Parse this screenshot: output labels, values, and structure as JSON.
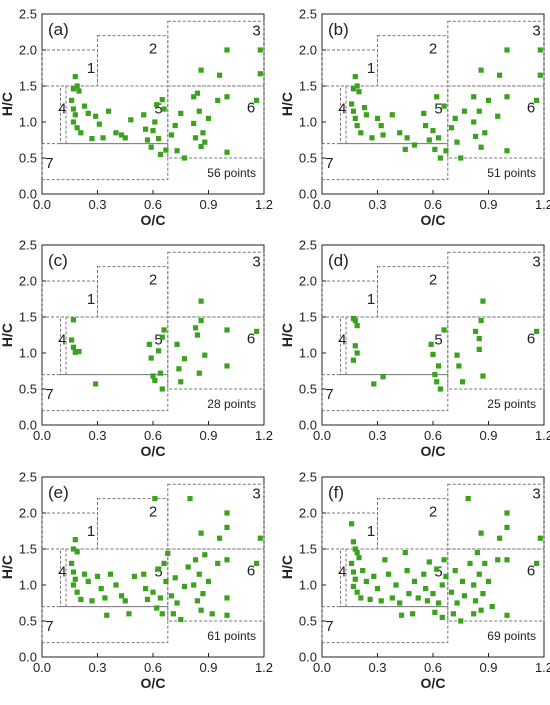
{
  "chart_data": [
    {
      "type": "scatter",
      "panel_label": "(a)",
      "count_label": "56 points",
      "xlabel": "O/C",
      "ylabel": "H/C",
      "xlim": [
        0,
        1.2
      ],
      "ylim": [
        0,
        2.5
      ],
      "x_ticks": [
        "0.0",
        "0.3",
        "0.6",
        "0.9",
        "1.2"
      ],
      "y_ticks": [
        "0.0",
        "0.5",
        "1.0",
        "1.5",
        "2.0",
        "2.5"
      ],
      "region_labels": [
        "1",
        "2",
        "3",
        "4",
        "5",
        "6",
        "7"
      ],
      "points": [
        [
          0.17,
          1.46
        ],
        [
          0.18,
          1.63
        ],
        [
          0.19,
          1.5
        ],
        [
          0.2,
          1.43
        ],
        [
          0.16,
          1.3
        ],
        [
          0.17,
          1.18
        ],
        [
          0.18,
          1.1
        ],
        [
          0.17,
          1.0
        ],
        [
          0.19,
          0.92
        ],
        [
          0.21,
          0.85
        ],
        [
          0.23,
          1.22
        ],
        [
          0.25,
          1.12
        ],
        [
          0.27,
          0.77
        ],
        [
          0.29,
          1.08
        ],
        [
          0.31,
          0.97
        ],
        [
          0.33,
          0.78
        ],
        [
          0.36,
          1.15
        ],
        [
          0.4,
          0.85
        ],
        [
          0.43,
          0.82
        ],
        [
          0.45,
          0.78
        ],
        [
          0.48,
          1.03
        ],
        [
          0.55,
          1.1
        ],
        [
          0.56,
          0.9
        ],
        [
          0.57,
          0.75
        ],
        [
          0.6,
          0.88
        ],
        [
          0.59,
          0.65
        ],
        [
          0.61,
          1.0
        ],
        [
          0.62,
          1.24
        ],
        [
          0.63,
          0.77
        ],
        [
          0.64,
          0.55
        ],
        [
          0.66,
          1.18
        ],
        [
          0.65,
          1.31
        ],
        [
          0.67,
          0.61
        ],
        [
          0.7,
          0.82
        ],
        [
          0.72,
          0.95
        ],
        [
          0.73,
          0.6
        ],
        [
          0.75,
          1.12
        ],
        [
          0.77,
          0.5
        ],
        [
          0.82,
          0.98
        ],
        [
          0.82,
          1.35
        ],
        [
          0.83,
          0.78
        ],
        [
          0.84,
          1.4
        ],
        [
          0.85,
          1.15
        ],
        [
          0.86,
          0.66
        ],
        [
          0.86,
          1.72
        ],
        [
          0.87,
          0.85
        ],
        [
          0.88,
          0.72
        ],
        [
          0.9,
          1.05
        ],
        [
          0.95,
          1.3
        ],
        [
          0.96,
          1.65
        ],
        [
          1.0,
          2.0
        ],
        [
          1.0,
          1.35
        ],
        [
          1.0,
          0.58
        ],
        [
          1.18,
          2.0
        ],
        [
          1.18,
          1.67
        ],
        [
          1.16,
          1.3
        ]
      ]
    },
    {
      "type": "scatter",
      "panel_label": "(b)",
      "count_label": "51 points",
      "xlabel": "O/C",
      "ylabel": "H/C",
      "xlim": [
        0,
        1.2
      ],
      "ylim": [
        0,
        2.5
      ],
      "x_ticks": [
        "0.0",
        "0.3",
        "0.6",
        "0.9",
        "1.2"
      ],
      "y_ticks": [
        "0.0",
        "0.5",
        "1.0",
        "1.5",
        "2.0",
        "2.5"
      ],
      "region_labels": [
        "1",
        "2",
        "3",
        "4",
        "5",
        "6",
        "7"
      ],
      "points": [
        [
          0.17,
          1.46
        ],
        [
          0.18,
          1.63
        ],
        [
          0.19,
          1.5
        ],
        [
          0.2,
          1.42
        ],
        [
          0.16,
          1.25
        ],
        [
          0.17,
          1.15
        ],
        [
          0.18,
          1.05
        ],
        [
          0.19,
          0.95
        ],
        [
          0.21,
          0.85
        ],
        [
          0.23,
          1.2
        ],
        [
          0.24,
          1.1
        ],
        [
          0.27,
          0.78
        ],
        [
          0.3,
          1.05
        ],
        [
          0.32,
          0.95
        ],
        [
          0.33,
          0.82
        ],
        [
          0.38,
          1.1
        ],
        [
          0.42,
          0.85
        ],
        [
          0.45,
          0.62
        ],
        [
          0.46,
          0.78
        ],
        [
          0.5,
          0.68
        ],
        [
          0.55,
          1.12
        ],
        [
          0.56,
          0.95
        ],
        [
          0.58,
          0.75
        ],
        [
          0.6,
          0.88
        ],
        [
          0.61,
          0.62
        ],
        [
          0.62,
          1.35
        ],
        [
          0.63,
          0.78
        ],
        [
          0.64,
          0.5
        ],
        [
          0.66,
          1.22
        ],
        [
          0.67,
          0.6
        ],
        [
          0.7,
          0.92
        ],
        [
          0.72,
          1.05
        ],
        [
          0.73,
          0.72
        ],
        [
          0.75,
          0.5
        ],
        [
          0.77,
          1.15
        ],
        [
          0.82,
          1.0
        ],
        [
          0.82,
          1.35
        ],
        [
          0.83,
          0.8
        ],
        [
          0.85,
          1.15
        ],
        [
          0.86,
          0.65
        ],
        [
          0.86,
          1.72
        ],
        [
          0.88,
          0.85
        ],
        [
          0.9,
          1.3
        ],
        [
          0.95,
          1.08
        ],
        [
          0.96,
          1.65
        ],
        [
          1.0,
          2.0
        ],
        [
          1.0,
          1.35
        ],
        [
          1.0,
          0.6
        ],
        [
          1.18,
          2.0
        ],
        [
          1.18,
          1.65
        ],
        [
          1.16,
          1.3
        ]
      ]
    },
    {
      "type": "scatter",
      "panel_label": "(c)",
      "count_label": "28 points",
      "xlabel": "O/C",
      "ylabel": "H/C",
      "xlim": [
        0,
        1.2
      ],
      "ylim": [
        0,
        2.5
      ],
      "x_ticks": [
        "0.0",
        "0.3",
        "0.6",
        "0.9",
        "1.2"
      ],
      "y_ticks": [
        "0.0",
        "0.5",
        "1.0",
        "1.5",
        "2.0",
        "2.5"
      ],
      "region_labels": [
        "1",
        "2",
        "3",
        "4",
        "5",
        "6",
        "7"
      ],
      "points": [
        [
          0.17,
          1.46
        ],
        [
          0.16,
          1.18
        ],
        [
          0.17,
          1.08
        ],
        [
          0.18,
          1.01
        ],
        [
          0.2,
          1.02
        ],
        [
          0.29,
          0.57
        ],
        [
          0.58,
          1.12
        ],
        [
          0.59,
          0.93
        ],
        [
          0.6,
          0.68
        ],
        [
          0.61,
          0.62
        ],
        [
          0.63,
          1.03
        ],
        [
          0.64,
          0.72
        ],
        [
          0.65,
          0.5
        ],
        [
          0.66,
          1.32
        ],
        [
          0.65,
          1.22
        ],
        [
          0.73,
          1.12
        ],
        [
          0.74,
          0.78
        ],
        [
          0.75,
          0.6
        ],
        [
          0.77,
          0.92
        ],
        [
          0.83,
          1.35
        ],
        [
          0.84,
          1.25
        ],
        [
          0.85,
          0.72
        ],
        [
          0.86,
          1.45
        ],
        [
          0.86,
          1.72
        ],
        [
          0.88,
          0.97
        ],
        [
          1.0,
          0.82
        ],
        [
          1.0,
          1.32
        ],
        [
          1.16,
          1.3
        ]
      ]
    },
    {
      "type": "scatter",
      "panel_label": "(d)",
      "count_label": "25 points",
      "xlabel": "O/C",
      "ylabel": "H/C",
      "xlim": [
        0,
        1.2
      ],
      "ylim": [
        0,
        2.5
      ],
      "x_ticks": [
        "0.0",
        "0.3",
        "0.6",
        "0.9",
        "1.2"
      ],
      "y_ticks": [
        "0.0",
        "0.5",
        "1.0",
        "1.5",
        "2.0",
        "2.5"
      ],
      "region_labels": [
        "1",
        "2",
        "3",
        "4",
        "5",
        "6",
        "7"
      ],
      "points": [
        [
          0.17,
          1.48
        ],
        [
          0.18,
          1.45
        ],
        [
          0.19,
          1.38
        ],
        [
          0.18,
          1.1
        ],
        [
          0.19,
          1.0
        ],
        [
          0.17,
          0.9
        ],
        [
          0.28,
          0.57
        ],
        [
          0.33,
          0.67
        ],
        [
          0.59,
          1.12
        ],
        [
          0.6,
          0.98
        ],
        [
          0.61,
          0.7
        ],
        [
          0.62,
          0.6
        ],
        [
          0.63,
          0.82
        ],
        [
          0.64,
          0.5
        ],
        [
          0.66,
          1.32
        ],
        [
          0.73,
          0.97
        ],
        [
          0.74,
          0.82
        ],
        [
          0.76,
          0.6
        ],
        [
          0.83,
          1.3
        ],
        [
          0.85,
          1.2
        ],
        [
          0.85,
          1.05
        ],
        [
          0.86,
          1.45
        ],
        [
          0.87,
          0.68
        ],
        [
          0.87,
          1.72
        ],
        [
          1.16,
          1.3
        ]
      ]
    },
    {
      "type": "scatter",
      "panel_label": "(e)",
      "count_label": "61 points",
      "xlabel": "O/C",
      "ylabel": "H/C",
      "xlim": [
        0,
        1.2
      ],
      "ylim": [
        0,
        2.5
      ],
      "x_ticks": [
        "0.0",
        "0.3",
        "0.6",
        "0.9",
        "1.2"
      ],
      "y_ticks": [
        "0.0",
        "0.5",
        "1.0",
        "1.5",
        "2.0",
        "2.5"
      ],
      "region_labels": [
        "1",
        "2",
        "3",
        "4",
        "5",
        "6",
        "7"
      ],
      "points": [
        [
          0.17,
          1.5
        ],
        [
          0.18,
          1.63
        ],
        [
          0.19,
          1.46
        ],
        [
          0.16,
          1.3
        ],
        [
          0.17,
          1.18
        ],
        [
          0.18,
          1.08
        ],
        [
          0.17,
          1.0
        ],
        [
          0.19,
          0.9
        ],
        [
          0.21,
          0.8
        ],
        [
          0.23,
          1.15
        ],
        [
          0.25,
          1.05
        ],
        [
          0.27,
          0.78
        ],
        [
          0.3,
          1.12
        ],
        [
          0.32,
          0.95
        ],
        [
          0.34,
          0.82
        ],
        [
          0.37,
          1.15
        ],
        [
          0.4,
          1.0
        ],
        [
          0.43,
          0.85
        ],
        [
          0.45,
          0.78
        ],
        [
          0.47,
          0.6
        ],
        [
          0.5,
          1.12
        ],
        [
          0.55,
          1.15
        ],
        [
          0.56,
          0.95
        ],
        [
          0.57,
          0.8
        ],
        [
          0.6,
          0.9
        ],
        [
          0.61,
          2.2
        ],
        [
          0.62,
          0.68
        ],
        [
          0.63,
          1.22
        ],
        [
          0.64,
          0.82
        ],
        [
          0.65,
          0.6
        ],
        [
          0.66,
          1.3
        ],
        [
          0.67,
          1.05
        ],
        [
          0.7,
          0.85
        ],
        [
          0.71,
          0.6
        ],
        [
          0.72,
          1.1
        ],
        [
          0.73,
          0.75
        ],
        [
          0.75,
          0.52
        ],
        [
          0.77,
          0.98
        ],
        [
          0.79,
          1.25
        ],
        [
          0.8,
          2.2
        ],
        [
          0.82,
          1.0
        ],
        [
          0.83,
          1.35
        ],
        [
          0.84,
          0.78
        ],
        [
          0.85,
          1.15
        ],
        [
          0.86,
          0.65
        ],
        [
          0.86,
          1.72
        ],
        [
          0.87,
          0.88
        ],
        [
          0.88,
          1.42
        ],
        [
          0.9,
          1.05
        ],
        [
          0.92,
          0.6
        ],
        [
          0.95,
          1.3
        ],
        [
          0.96,
          1.65
        ],
        [
          1.0,
          2.0
        ],
        [
          1.0,
          1.35
        ],
        [
          1.0,
          1.8
        ],
        [
          1.0,
          0.58
        ],
        [
          1.0,
          0.82
        ],
        [
          1.18,
          1.65
        ],
        [
          1.16,
          1.3
        ],
        [
          0.68,
          1.44
        ],
        [
          0.35,
          0.58
        ]
      ]
    },
    {
      "type": "scatter",
      "panel_label": "(f)",
      "count_label": "69 points",
      "xlabel": "O/C",
      "ylabel": "H/C",
      "xlim": [
        0,
        1.2
      ],
      "ylim": [
        0,
        2.5
      ],
      "x_ticks": [
        "0.0",
        "0.3",
        "0.6",
        "0.9",
        "1.2"
      ],
      "y_ticks": [
        "0.0",
        "0.5",
        "1.0",
        "1.5",
        "2.0",
        "2.5"
      ],
      "region_labels": [
        "1",
        "2",
        "3",
        "4",
        "5",
        "6",
        "7"
      ],
      "points": [
        [
          0.16,
          1.85
        ],
        [
          0.17,
          1.6
        ],
        [
          0.18,
          1.5
        ],
        [
          0.19,
          1.45
        ],
        [
          0.2,
          1.38
        ],
        [
          0.16,
          1.3
        ],
        [
          0.17,
          1.18
        ],
        [
          0.18,
          1.08
        ],
        [
          0.17,
          0.98
        ],
        [
          0.19,
          0.9
        ],
        [
          0.21,
          0.82
        ],
        [
          0.22,
          1.2
        ],
        [
          0.24,
          1.05
        ],
        [
          0.26,
          0.8
        ],
        [
          0.28,
          1.12
        ],
        [
          0.3,
          0.95
        ],
        [
          0.32,
          0.78
        ],
        [
          0.34,
          1.35
        ],
        [
          0.36,
          1.15
        ],
        [
          0.38,
          0.82
        ],
        [
          0.4,
          1.0
        ],
        [
          0.42,
          0.75
        ],
        [
          0.43,
          0.58
        ],
        [
          0.45,
          1.45
        ],
        [
          0.46,
          1.2
        ],
        [
          0.47,
          0.88
        ],
        [
          0.49,
          0.6
        ],
        [
          0.5,
          1.05
        ],
        [
          0.52,
          0.82
        ],
        [
          0.55,
          1.15
        ],
        [
          0.56,
          0.95
        ],
        [
          0.57,
          0.78
        ],
        [
          0.58,
          1.32
        ],
        [
          0.6,
          0.88
        ],
        [
          0.61,
          0.62
        ],
        [
          0.62,
          1.22
        ],
        [
          0.63,
          0.75
        ],
        [
          0.65,
          1.0
        ],
        [
          0.65,
          0.55
        ],
        [
          0.66,
          1.35
        ],
        [
          0.67,
          1.12
        ],
        [
          0.7,
          0.9
        ],
        [
          0.71,
          0.6
        ],
        [
          0.72,
          1.2
        ],
        [
          0.73,
          0.75
        ],
        [
          0.75,
          0.5
        ],
        [
          0.76,
          1.05
        ],
        [
          0.77,
          0.85
        ],
        [
          0.79,
          2.2
        ],
        [
          0.8,
          1.3
        ],
        [
          0.82,
          1.0
        ],
        [
          0.82,
          0.6
        ],
        [
          0.83,
          0.78
        ],
        [
          0.84,
          1.45
        ],
        [
          0.85,
          1.15
        ],
        [
          0.86,
          0.65
        ],
        [
          0.86,
          1.72
        ],
        [
          0.87,
          0.88
        ],
        [
          0.88,
          1.3
        ],
        [
          0.9,
          1.05
        ],
        [
          0.92,
          0.7
        ],
        [
          0.95,
          1.35
        ],
        [
          0.96,
          1.65
        ],
        [
          1.0,
          2.0
        ],
        [
          1.0,
          1.35
        ],
        [
          1.0,
          1.8
        ],
        [
          1.0,
          0.58
        ],
        [
          1.18,
          1.65
        ],
        [
          1.16,
          1.3
        ]
      ]
    }
  ],
  "colors": {
    "marker": "#3aa21c",
    "region_border": "#777777",
    "axis": "#222222"
  }
}
